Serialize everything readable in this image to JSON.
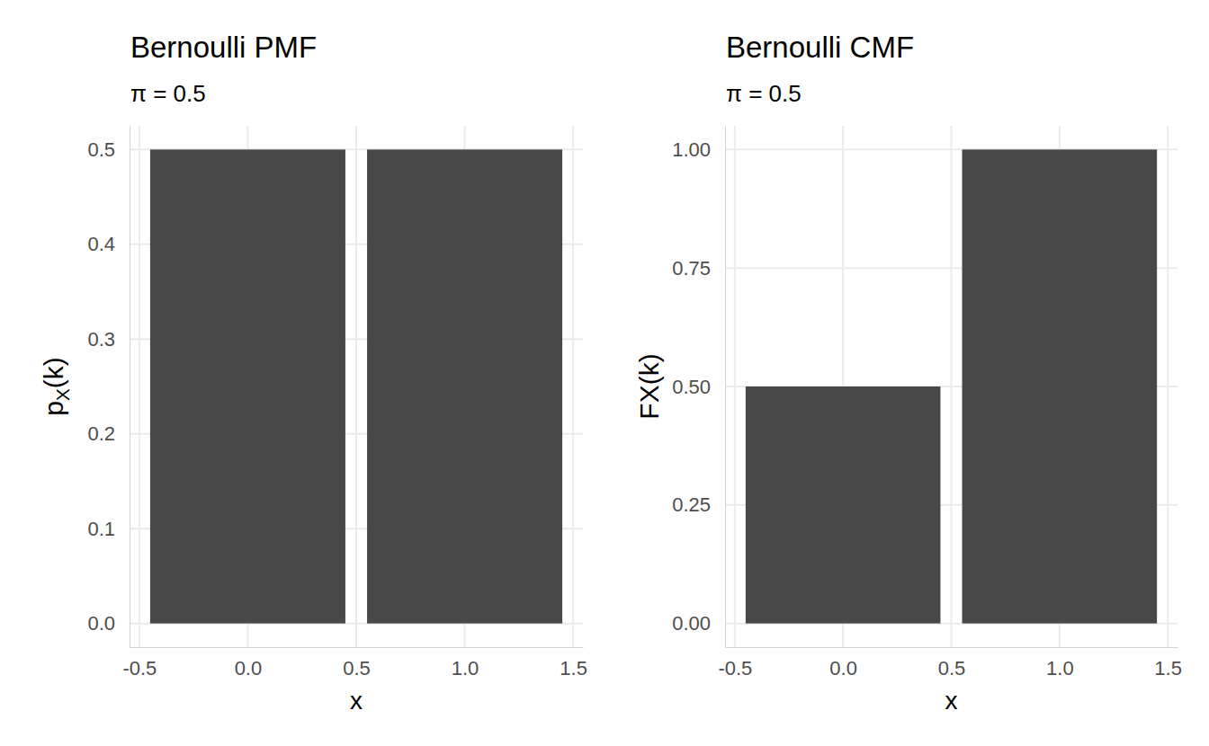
{
  "chart_data": [
    {
      "type": "bar",
      "title": "Bernoulli PMF",
      "subtitle": "π = 0.5",
      "x_label": "x",
      "y_label": "pX(k)",
      "x": [
        0,
        1
      ],
      "values": [
        0.5,
        0.5
      ],
      "color": "#484848",
      "xlim": [
        -0.545,
        1.545
      ],
      "xticks": [
        -0.5,
        {
          "value": 0,
          "label": "0.0"
        },
        0.5,
        {
          "value": 1,
          "label": "1.0"
        },
        1.5
      ],
      "ylim": [
        -0.025,
        0.525
      ],
      "yticks": [
        {
          "value": 0,
          "label": "0.0"
        },
        0.1,
        0.2,
        0.3,
        0.4,
        0.5
      ],
      "grid": true
    },
    {
      "type": "bar",
      "title": "Bernoulli CMF",
      "subtitle": "π = 0.5",
      "x_label": "x",
      "y_label": "FX(k)",
      "x": [
        0,
        1
      ],
      "values": [
        0.5,
        1.0
      ],
      "color": "#484848",
      "xlim": [
        -0.545,
        1.545
      ],
      "xticks": [
        -0.5,
        {
          "value": 0,
          "label": "0.0"
        },
        0.5,
        {
          "value": 1,
          "label": "1.0"
        },
        1.5
      ],
      "ylim": [
        -0.05,
        1.05
      ],
      "yticks": [
        {
          "value": 0,
          "label": "0.00"
        },
        0.25,
        {
          "value": 0.5,
          "label": "0.50"
        },
        0.75,
        {
          "value": 1,
          "label": "1.00"
        }
      ],
      "grid": true
    }
  ]
}
